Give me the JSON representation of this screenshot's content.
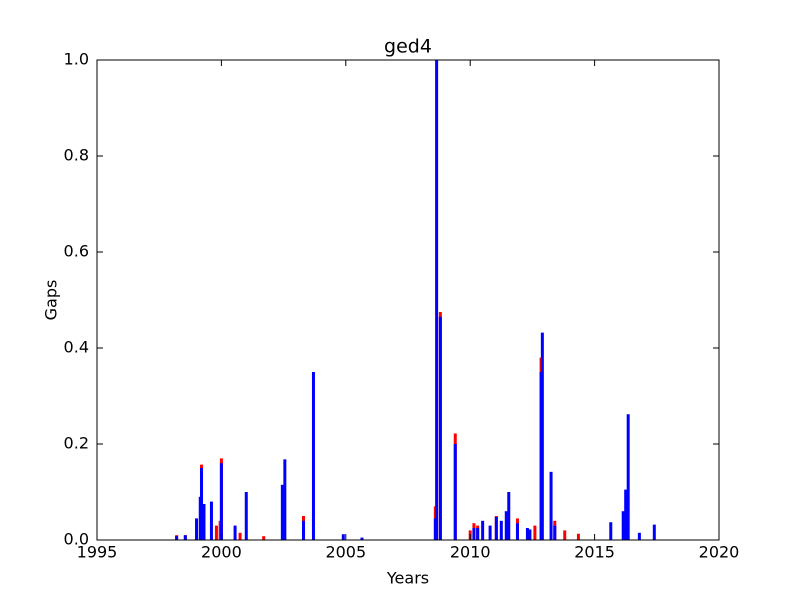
{
  "chart_data": {
    "type": "bar",
    "title": "ged4",
    "x_label": "Years",
    "y_label": "Gaps",
    "x": [
      1998.2,
      1998.55,
      1999.0,
      1999.15,
      1999.2,
      1999.3,
      1999.6,
      1999.8,
      1999.95,
      2000.0,
      2000.55,
      2000.75,
      2001.0,
      2001.7,
      2002.45,
      2002.55,
      2003.3,
      2003.7,
      2004.9,
      2005.65,
      2008.6,
      2008.65,
      2008.8,
      2009.4,
      2010.0,
      2010.15,
      2010.3,
      2010.5,
      2010.8,
      2011.05,
      2011.25,
      2011.45,
      2011.55,
      2011.9,
      2012.3,
      2012.4,
      2012.6,
      2012.85,
      2012.9,
      2013.25,
      2013.4,
      2013.8,
      2014.35,
      2015.65,
      2016.15,
      2016.25,
      2016.35,
      2016.8,
      2017.4
    ],
    "series": [
      {
        "name": "red",
        "color": "#ff0000",
        "values": [
          0.01,
          0.01,
          null,
          null,
          0.157,
          null,
          null,
          0.03,
          0.04,
          0.17,
          null,
          0.015,
          null,
          0.008,
          null,
          null,
          0.05,
          null,
          null,
          null,
          0.07,
          null,
          0.475,
          0.222,
          0.02,
          0.035,
          0.03,
          null,
          null,
          0.05,
          null,
          null,
          null,
          0.045,
          null,
          null,
          0.03,
          0.38,
          null,
          null,
          0.04,
          0.02,
          0.013,
          null,
          null,
          null,
          null,
          null,
          null
        ]
      },
      {
        "name": "blue",
        "color": "#0000ff",
        "values": [
          0.008,
          0.01,
          0.045,
          0.09,
          0.15,
          0.075,
          0.08,
          null,
          null,
          0.16,
          0.03,
          null,
          0.1,
          null,
          0.115,
          0.168,
          0.04,
          0.35,
          0.012,
          0.005,
          0.045,
          1.0,
          0.465,
          0.2,
          null,
          0.025,
          0.025,
          0.04,
          0.03,
          0.048,
          0.04,
          0.06,
          0.1,
          0.035,
          0.025,
          0.022,
          null,
          0.35,
          0.432,
          0.142,
          0.03,
          null,
          null,
          0.037,
          0.06,
          0.105,
          0.262,
          0.015,
          0.032
        ]
      }
    ],
    "xlim": [
      1995,
      2020
    ],
    "xticks": [
      1995,
      2000,
      2005,
      2010,
      2015,
      2020
    ],
    "ylim": [
      0,
      1
    ],
    "yticks": [
      {
        "value": 0,
        "label": "0.0"
      },
      0.2,
      0.4,
      0.6,
      0.8,
      {
        "value": 1,
        "label": "1.0"
      }
    ]
  }
}
